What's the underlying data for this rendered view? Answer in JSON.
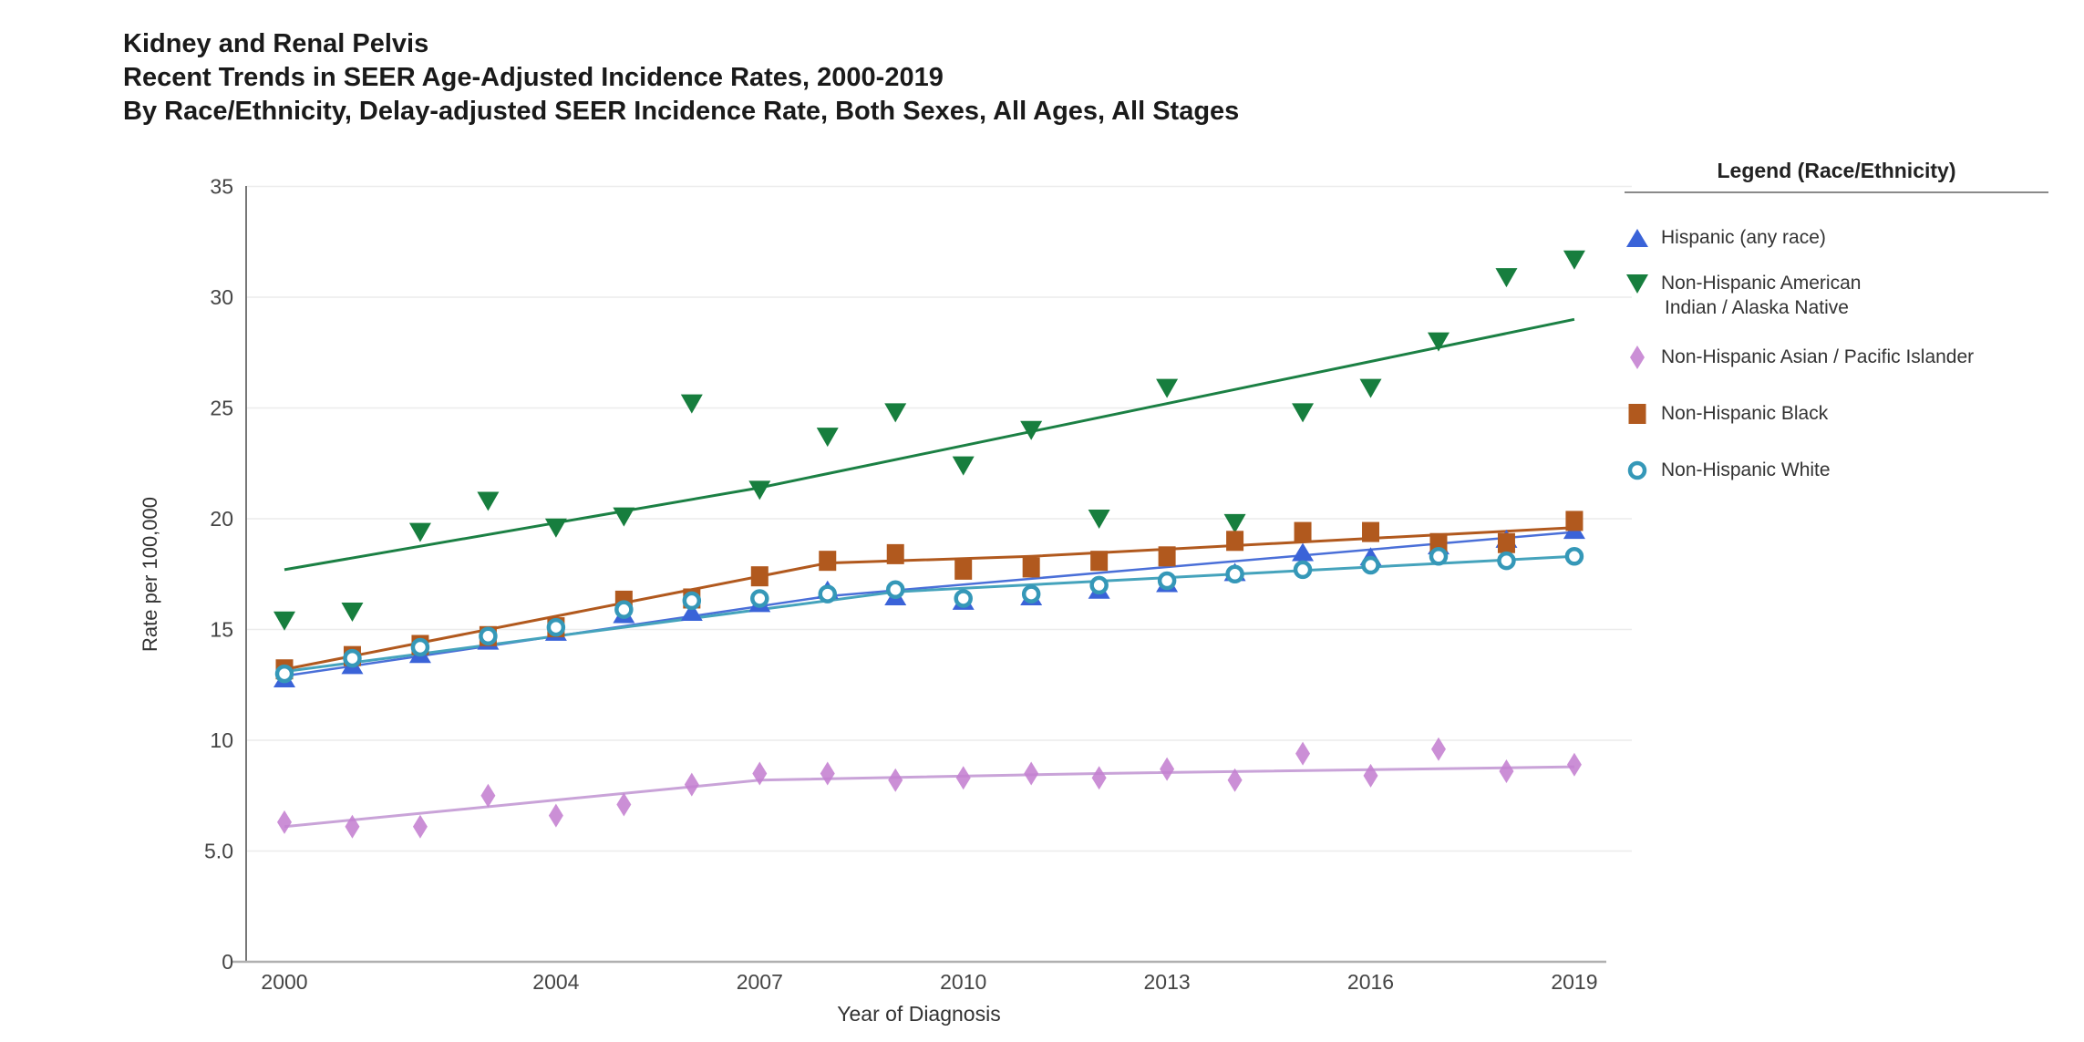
{
  "title": {
    "line1": "Kidney and Renal Pelvis",
    "line2": "Recent Trends in SEER Age-Adjusted Incidence Rates, 2000-2019",
    "line3": "By Race/Ethnicity, Delay-adjusted SEER Incidence Rate, Both Sexes, All Ages, All Stages"
  },
  "y_axis": {
    "label": "Rate per 100,000",
    "ticks": [
      {
        "label": "35",
        "value": 35
      },
      {
        "label": "30",
        "value": 30
      },
      {
        "label": "25",
        "value": 25
      },
      {
        "label": "20",
        "value": 20
      },
      {
        "label": "15",
        "value": 15
      },
      {
        "label": "10",
        "value": 10
      },
      {
        "label": "5.0",
        "value": 5
      },
      {
        "label": "0",
        "value": 0
      }
    ]
  },
  "x_axis": {
    "label": "Year of Diagnosis",
    "ticks": [
      2000,
      2004,
      2007,
      2010,
      2013,
      2016,
      2019
    ]
  },
  "legend": {
    "title": "Legend (Race/Ethnicity)",
    "items": [
      {
        "lines": [
          "Hispanic (any race)"
        ],
        "marker": "triangle-up",
        "color": "#3A63D8"
      },
      {
        "lines": [
          "Non-Hispanic American",
          "Indian / Alaska Native"
        ],
        "marker": "triangle-down",
        "color": "#177E3E"
      },
      {
        "lines": [
          "Non-Hispanic Asian / Pacific Islander"
        ],
        "marker": "diamond",
        "color": "#C47FD0"
      },
      {
        "lines": [
          "Non-Hispanic Black"
        ],
        "marker": "square",
        "color": "#B1591E"
      },
      {
        "lines": [
          "Non-Hispanic White"
        ],
        "marker": "circle-open",
        "color": "#3598B8"
      }
    ]
  },
  "chart_data": {
    "type": "scatter",
    "title": "Kidney and Renal Pelvis — Recent Trends in SEER Age-Adjusted Incidence Rates, 2000-2019",
    "xlabel": "Year of Diagnosis",
    "ylabel": "Rate per 100,000",
    "xlim": [
      2000,
      2019
    ],
    "ylim": [
      0,
      35
    ],
    "grid": "horizontal",
    "legend_position": "right",
    "x": [
      2000,
      2001,
      2002,
      2003,
      2004,
      2005,
      2006,
      2007,
      2008,
      2009,
      2010,
      2011,
      2012,
      2013,
      2014,
      2015,
      2016,
      2017,
      2018,
      2019
    ],
    "series": [
      {
        "name": "Hispanic (any race)",
        "marker": "triangle-up",
        "color": "#3A63D8",
        "trend_color": "#4A6FD8",
        "values": [
          12.8,
          13.4,
          13.9,
          14.5,
          14.9,
          15.7,
          15.8,
          16.2,
          16.8,
          16.5,
          16.3,
          16.5,
          16.8,
          17.1,
          17.6,
          18.5,
          18.3,
          18.8,
          19.1,
          19.5
        ],
        "trend": [
          [
            2000,
            12.9
          ],
          [
            2008,
            16.5
          ],
          [
            2019,
            19.4
          ]
        ]
      },
      {
        "name": "Non-Hispanic American Indian / Alaska Native",
        "marker": "triangle-down",
        "color": "#177E3E",
        "trend_color": "#1B8044",
        "values": [
          15.4,
          15.8,
          19.4,
          20.8,
          19.6,
          20.1,
          25.2,
          21.3,
          23.7,
          24.8,
          22.4,
          24.0,
          20.0,
          25.9,
          19.8,
          24.8,
          25.9,
          28.0,
          30.9,
          31.7
        ],
        "trend": [
          [
            2000,
            17.7
          ],
          [
            2007,
            21.4
          ],
          [
            2019,
            29.0
          ]
        ]
      },
      {
        "name": "Non-Hispanic Asian / Pacific Islander",
        "marker": "diamond",
        "color": "#C47FD0",
        "trend_color": "#C9A3D8",
        "values": [
          6.3,
          6.1,
          6.1,
          7.5,
          6.6,
          7.1,
          8.0,
          8.5,
          8.5,
          8.2,
          8.3,
          8.5,
          8.3,
          8.7,
          8.2,
          9.4,
          8.4,
          9.6,
          8.6,
          8.9
        ],
        "trend": [
          [
            2000,
            6.1
          ],
          [
            2007,
            8.2
          ],
          [
            2012,
            8.5
          ],
          [
            2019,
            8.8
          ]
        ]
      },
      {
        "name": "Non-Hispanic Black",
        "marker": "square",
        "color": "#B1591E",
        "trend_color": "#B1591E",
        "values": [
          13.2,
          13.8,
          14.3,
          14.7,
          15.1,
          16.3,
          16.4,
          17.4,
          18.1,
          18.4,
          17.7,
          17.8,
          18.1,
          18.3,
          19.0,
          19.4,
          19.4,
          18.9,
          18.9,
          19.9
        ],
        "trend": [
          [
            2000,
            13.2
          ],
          [
            2008,
            18.0
          ],
          [
            2011,
            18.3
          ],
          [
            2019,
            19.6
          ]
        ]
      },
      {
        "name": "Non-Hispanic White",
        "marker": "circle-open",
        "color": "#3598B8",
        "trend_color": "#45A3BC",
        "values": [
          13.0,
          13.7,
          14.2,
          14.7,
          15.1,
          15.9,
          16.3,
          16.4,
          16.6,
          16.8,
          16.4,
          16.6,
          17.0,
          17.2,
          17.5,
          17.7,
          17.9,
          18.3,
          18.1,
          18.3
        ],
        "trend": [
          [
            2000,
            13.1
          ],
          [
            2009,
            16.7
          ],
          [
            2019,
            18.3
          ]
        ]
      }
    ]
  }
}
